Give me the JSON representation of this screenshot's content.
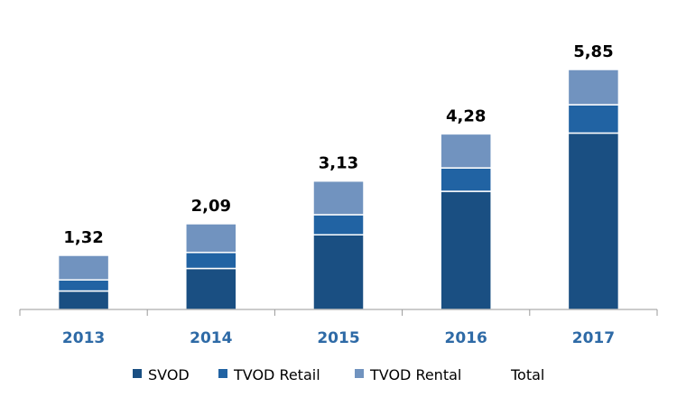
{
  "chart_data": {
    "type": "bar",
    "stacked": true,
    "categories": [
      "2013",
      "2014",
      "2015",
      "2016",
      "2017"
    ],
    "series": [
      {
        "name": "SVOD",
        "values": [
          0.45,
          1.0,
          1.82,
          2.88,
          4.3
        ],
        "color": "#1a4f82"
      },
      {
        "name": "TVOD Retail",
        "values": [
          0.27,
          0.39,
          0.49,
          0.57,
          0.69
        ],
        "color": "#2163a3"
      },
      {
        "name": "TVOD Rental",
        "values": [
          0.6,
          0.7,
          0.82,
          0.83,
          0.86
        ],
        "color": "#7193bf"
      }
    ],
    "totals": {
      "name": "Total",
      "values": [
        "1,32",
        "2,09",
        "3,13",
        "4,28",
        "5,85"
      ],
      "numeric": [
        1.32,
        2.09,
        3.13,
        4.28,
        5.85
      ]
    },
    "ylim": [
      0,
      5.85
    ],
    "tick_label_color": "#2e6aa6",
    "axis_color": "#9a9a9a",
    "grid": false,
    "legend_position": "bottom"
  }
}
